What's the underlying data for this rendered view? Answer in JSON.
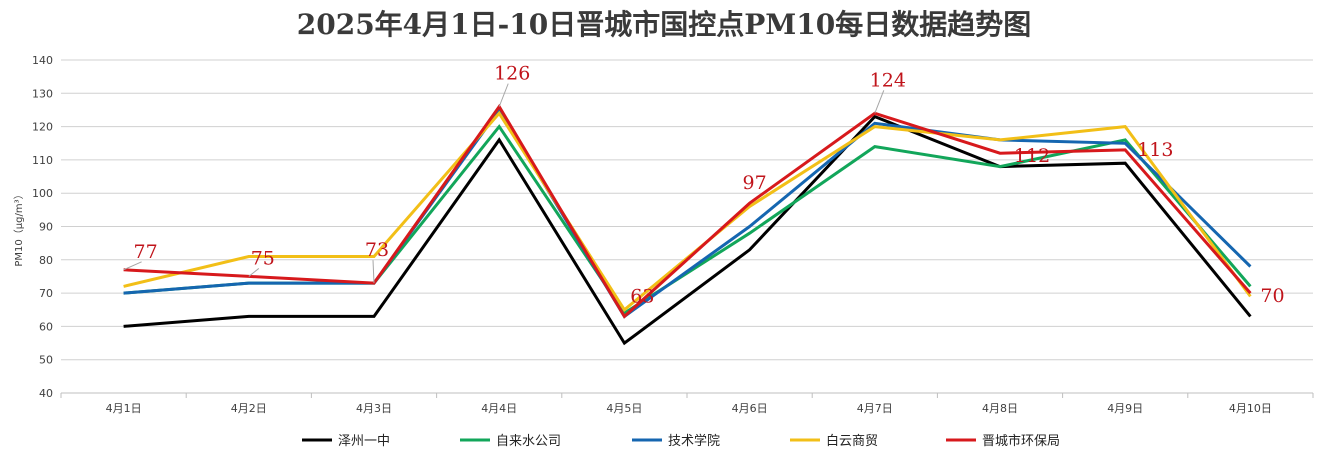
{
  "chart_data": {
    "type": "line",
    "title": "2025年4月1日-10日晋城市国控点PM10每日数据趋势图",
    "xlabel": "",
    "ylabel": "PM10（μg/m³）",
    "ylim": [
      40,
      140
    ],
    "yticks": [
      "40",
      "50",
      "60",
      "70",
      "80",
      "90",
      "100",
      "110",
      "120",
      "130",
      "140"
    ],
    "grid": true,
    "legend_position": "bottom",
    "categories": [
      "4月1日",
      "4月2日",
      "4月3日",
      "4月4日",
      "4月5日",
      "4月6日",
      "4月7日",
      "4月8日",
      "4月9日",
      "4月10日"
    ],
    "series": [
      {
        "name": "泽州一中",
        "color": "#000000",
        "values": [
          60,
          63,
          63,
          116,
          55,
          83,
          123,
          108,
          109,
          63
        ]
      },
      {
        "name": "自来水公司",
        "color": "#12a65a",
        "values": [
          70,
          73,
          73,
          120,
          64,
          88,
          114,
          108,
          116,
          72
        ]
      },
      {
        "name": "技术学院",
        "color": "#1566b0",
        "values": [
          70,
          73,
          73,
          125,
          63,
          90,
          121,
          116,
          115,
          78
        ]
      },
      {
        "name": "白云商贸",
        "color": "#f2bf17",
        "values": [
          72,
          81,
          81,
          124,
          65,
          96,
          120,
          116,
          120,
          69
        ]
      },
      {
        "name": "晋城市环保局",
        "color": "#d7191c",
        "values": [
          77,
          75,
          73,
          126,
          63,
          97,
          124,
          112,
          113,
          70
        ]
      }
    ],
    "data_labels": {
      "series": "晋城市环保局",
      "color": "#c0141b",
      "values": [
        "77",
        "75",
        "73",
        "126",
        "63",
        "97",
        "124",
        "112",
        "113",
        "70"
      ]
    }
  }
}
